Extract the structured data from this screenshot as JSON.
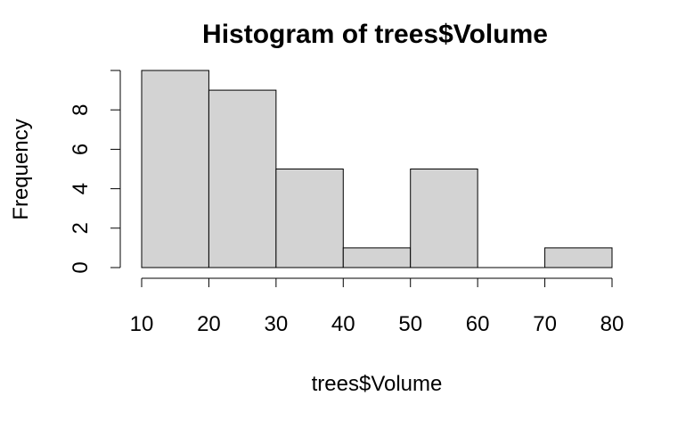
{
  "chart_data": {
    "type": "bar",
    "title": "Histogram of trees$Volume",
    "xlabel": "trees$Volume",
    "ylabel": "Frequency",
    "bin_edges": [
      10,
      20,
      30,
      40,
      50,
      60,
      70,
      80
    ],
    "values": [
      10,
      9,
      5,
      1,
      5,
      0,
      1
    ],
    "xlim": [
      10,
      80
    ],
    "ylim": [
      0,
      10
    ],
    "x_ticks": [
      10,
      20,
      30,
      40,
      50,
      60,
      70,
      80
    ],
    "y_ticks": [
      0,
      2,
      4,
      6,
      8
    ],
    "bar_color": "#d3d3d3",
    "grid": false,
    "legend": "none"
  }
}
